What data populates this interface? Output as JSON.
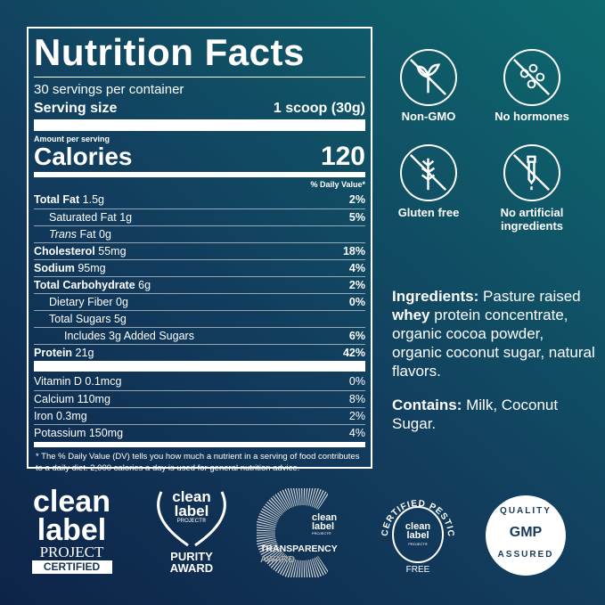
{
  "nutrition": {
    "title": "Nutrition Facts",
    "servings": "30 servings per container",
    "serving_size_label": "Serving size",
    "serving_size_value": "1 scoop (30g)",
    "amount_per_serving": "Amount per serving",
    "calories_label": "Calories",
    "calories_value": "120",
    "dv_header": "% Daily Value*",
    "rows": [
      {
        "name": "Total Fat",
        "amount": "1.5g",
        "dv": "2%"
      },
      {
        "name": "Saturated Fat",
        "amount": "1g",
        "dv": "5%"
      },
      {
        "name": "Trans",
        "amount": "Fat 0g",
        "dv": ""
      },
      {
        "name": "Cholesterol",
        "amount": "55mg",
        "dv": "18%"
      },
      {
        "name": "Sodium",
        "amount": "95mg",
        "dv": "4%"
      },
      {
        "name": "Total Carbohydrate",
        "amount": "6g",
        "dv": "2%"
      },
      {
        "name": "Dietary Fiber",
        "amount": "0g",
        "dv": "0%"
      },
      {
        "name": "Total Sugars",
        "amount": "5g",
        "dv": ""
      },
      {
        "name": "Includes 3g Added Sugars",
        "amount": "",
        "dv": "6%"
      },
      {
        "name": "Protein",
        "amount": "21g",
        "dv": "42%"
      }
    ],
    "vitamins": [
      {
        "label": "Vitamin D 0.1mcg",
        "dv": "0%"
      },
      {
        "label": "Calcium 110mg",
        "dv": "8%"
      },
      {
        "label": "Iron 0.3mg",
        "dv": "2%"
      },
      {
        "label": "Potassium 150mg",
        "dv": "4%"
      }
    ],
    "footnote": "* The % Daily Value (DV) tells you how much a nutrient in a serving of food contributes to a daily diet. 2,000 calories a day is used for general nutrition advice."
  },
  "features": [
    {
      "label": "Non-GMO",
      "icon": "no-gmo-plant-icon"
    },
    {
      "label": "No hormones",
      "icon": "no-hormones-molecule-icon"
    },
    {
      "label": "Gluten free",
      "icon": "no-wheat-icon"
    },
    {
      "label": "No artificial ingredients",
      "icon": "no-dropper-icon"
    }
  ],
  "ingredients": {
    "label": "Ingredients:",
    "pre": " Pasture raised ",
    "bold": "whey",
    "post": " protein concentrate, organic cocoa powder, organic coconut sugar, natural flavors."
  },
  "contains": {
    "label": "Contains:",
    "text": " Milk, Coconut Sugar."
  },
  "badges": {
    "clean_label": [
      "clean",
      "label",
      "PROJECT",
      "CERTIFIED"
    ],
    "purity": [
      "clean",
      "label",
      "PROJECT®",
      "PURITY",
      "AWARD"
    ],
    "transparency": [
      "clean",
      "label",
      "PROJECT®",
      "TRANSPARENCY",
      "AWARD"
    ],
    "pesticide": [
      "CERTIFIED PESTICIDE",
      "FREE",
      "clean",
      "label",
      "PROJECT®"
    ],
    "gmp": [
      "QUALITY",
      "GMP",
      "ASSURED"
    ]
  }
}
